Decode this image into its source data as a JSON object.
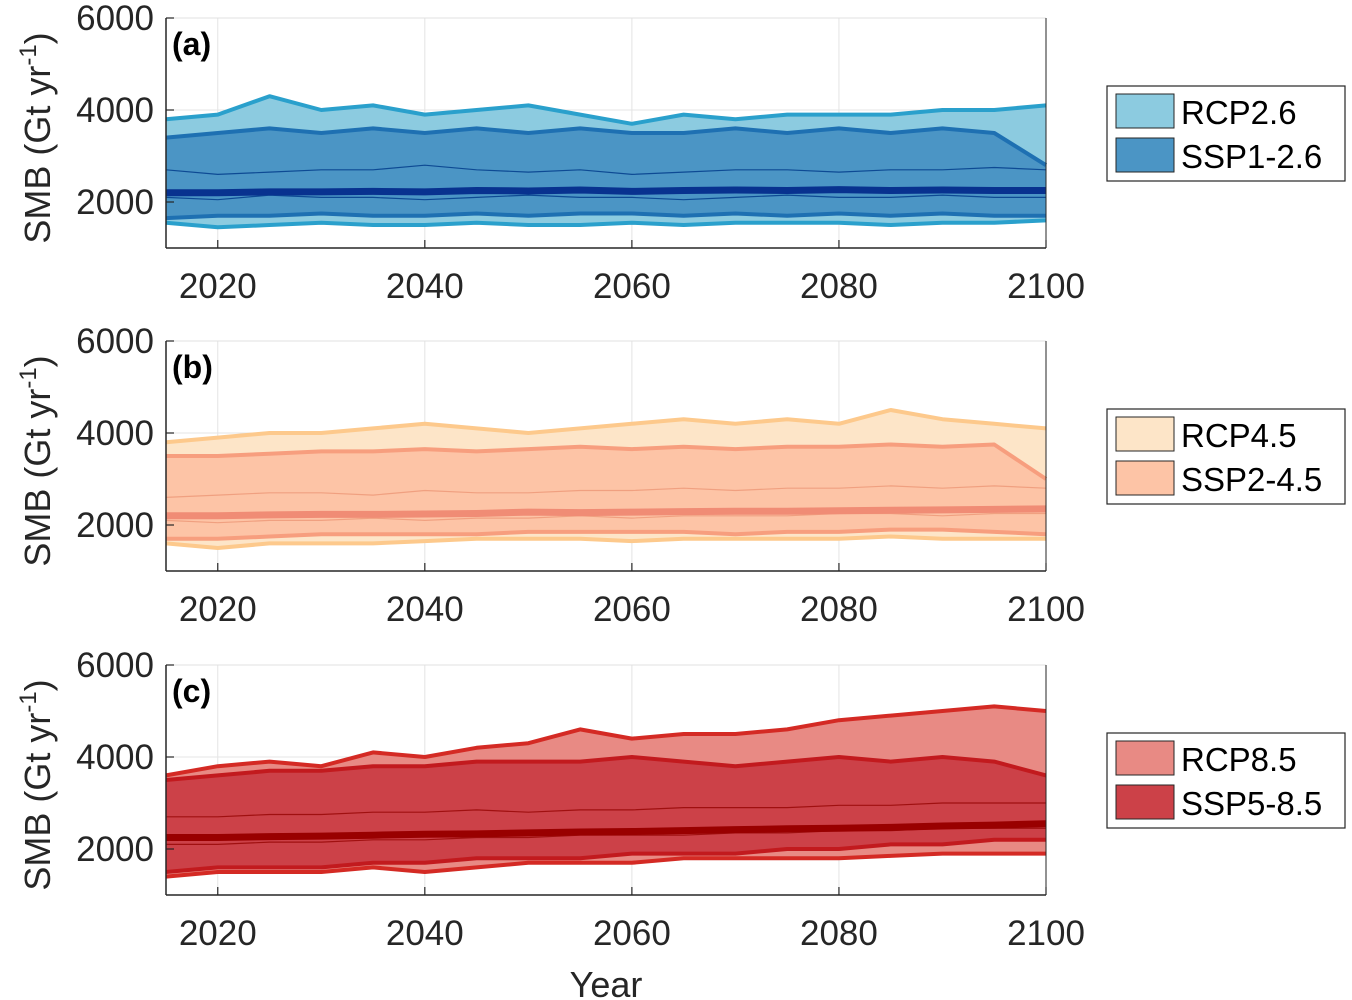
{
  "chart_data": [
    {
      "type": "area",
      "panel_label": "(a)",
      "ylabel": "SMB (Gt yr",
      "ylabel_sup": "-1",
      "xlabel": "",
      "xlim": [
        2015,
        2100
      ],
      "ylim": [
        1000,
        6000
      ],
      "xticks": [
        "2020",
        "2040",
        "2060",
        "2080",
        "2100"
      ],
      "yticks": [
        "2000",
        "4000",
        "6000"
      ],
      "grid": true,
      "legend_position": "right",
      "x": [
        2015,
        2020,
        2025,
        2030,
        2035,
        2040,
        2045,
        2050,
        2055,
        2060,
        2065,
        2070,
        2075,
        2080,
        2085,
        2090,
        2095,
        2100
      ],
      "series": [
        {
          "name": "RCP2.6",
          "fill": "#8ccbe0",
          "edge": "#2aa0cc",
          "upper": [
            3800,
            3900,
            4300,
            4000,
            4100,
            3900,
            4000,
            4100,
            3900,
            3700,
            3900,
            3800,
            3900,
            3900,
            3900,
            4000,
            4000,
            4100
          ],
          "lower": [
            1550,
            1450,
            1500,
            1550,
            1500,
            1500,
            1550,
            1500,
            1500,
            1550,
            1500,
            1550,
            1550,
            1550,
            1500,
            1550,
            1550,
            1600
          ]
        },
        {
          "name": "SSP1-2.6",
          "fill": "#4b95c5",
          "edge": "#1e70b2",
          "upper": [
            3400,
            3500,
            3600,
            3500,
            3600,
            3500,
            3600,
            3500,
            3600,
            3500,
            3500,
            3600,
            3500,
            3600,
            3500,
            3600,
            3500,
            2800
          ],
          "lower": [
            1650,
            1700,
            1700,
            1750,
            1700,
            1700,
            1750,
            1700,
            1750,
            1750,
            1700,
            1750,
            1700,
            1750,
            1700,
            1750,
            1700,
            1700
          ]
        }
      ],
      "median": {
        "color": "#08328f",
        "values": [
          2200,
          2200,
          2220,
          2220,
          2230,
          2220,
          2250,
          2240,
          2260,
          2230,
          2250,
          2260,
          2250,
          2270,
          2250,
          2260,
          2250,
          2250
        ]
      },
      "members": {
        "color": "#0d4a94",
        "values": [
          [
            2700,
            2600,
            2650,
            2700,
            2700,
            2800,
            2700,
            2650,
            2700,
            2600,
            2650,
            2700,
            2700,
            2650,
            2700,
            2700,
            2750,
            2700
          ],
          [
            2100,
            2050,
            2150,
            2100,
            2100,
            2050,
            2100,
            2150,
            2100,
            2100,
            2050,
            2100,
            2150,
            2100,
            2100,
            2150,
            2100,
            2100
          ]
        ]
      }
    },
    {
      "type": "area",
      "panel_label": "(b)",
      "ylabel": "SMB (Gt yr",
      "ylabel_sup": "-1",
      "xlabel": "",
      "xlim": [
        2015,
        2100
      ],
      "ylim": [
        1000,
        6000
      ],
      "xticks": [
        "2020",
        "2040",
        "2060",
        "2080",
        "2100"
      ],
      "yticks": [
        "2000",
        "4000",
        "6000"
      ],
      "grid": true,
      "legend_position": "right",
      "x": [
        2015,
        2020,
        2025,
        2030,
        2035,
        2040,
        2045,
        2050,
        2055,
        2060,
        2065,
        2070,
        2075,
        2080,
        2085,
        2090,
        2095,
        2100
      ],
      "series": [
        {
          "name": "RCP4.5",
          "fill": "#fde5c8",
          "edge": "#fdc98c",
          "upper": [
            3800,
            3900,
            4000,
            4000,
            4100,
            4200,
            4100,
            4000,
            4100,
            4200,
            4300,
            4200,
            4300,
            4200,
            4500,
            4300,
            4200,
            4100
          ],
          "lower": [
            1600,
            1500,
            1600,
            1600,
            1600,
            1650,
            1700,
            1700,
            1700,
            1650,
            1700,
            1700,
            1700,
            1700,
            1750,
            1700,
            1700,
            1700
          ]
        },
        {
          "name": "SSP2-4.5",
          "fill": "#fdc4a6",
          "edge": "#f79e7e",
          "upper": [
            3500,
            3500,
            3550,
            3600,
            3600,
            3650,
            3600,
            3650,
            3700,
            3650,
            3700,
            3650,
            3700,
            3700,
            3750,
            3700,
            3750,
            3000
          ],
          "lower": [
            1700,
            1700,
            1750,
            1800,
            1800,
            1800,
            1800,
            1850,
            1850,
            1850,
            1850,
            1800,
            1850,
            1850,
            1900,
            1900,
            1850,
            1800
          ]
        }
      ],
      "median": {
        "color": "#f08c75",
        "values": [
          2200,
          2200,
          2220,
          2230,
          2230,
          2240,
          2250,
          2280,
          2270,
          2280,
          2290,
          2300,
          2300,
          2310,
          2320,
          2330,
          2340,
          2350
        ]
      },
      "members": {
        "color": "#f0a080",
        "values": [
          [
            2600,
            2650,
            2700,
            2700,
            2650,
            2750,
            2700,
            2700,
            2750,
            2750,
            2800,
            2750,
            2800,
            2800,
            2850,
            2800,
            2850,
            2800
          ],
          [
            2100,
            2050,
            2100,
            2100,
            2150,
            2100,
            2150,
            2150,
            2200,
            2150,
            2200,
            2200,
            2200,
            2250,
            2250,
            2200,
            2250,
            2250
          ]
        ]
      }
    },
    {
      "type": "area",
      "panel_label": "(c)",
      "ylabel": "SMB (Gt yr",
      "ylabel_sup": "-1",
      "xlabel": "Year",
      "xlim": [
        2015,
        2100
      ],
      "ylim": [
        1000,
        6000
      ],
      "xticks": [
        "2020",
        "2040",
        "2060",
        "2080",
        "2100"
      ],
      "yticks": [
        "2000",
        "4000",
        "6000"
      ],
      "grid": true,
      "legend_position": "right",
      "x": [
        2015,
        2020,
        2025,
        2030,
        2035,
        2040,
        2045,
        2050,
        2055,
        2060,
        2065,
        2070,
        2075,
        2080,
        2085,
        2090,
        2095,
        2100
      ],
      "series": [
        {
          "name": "RCP8.5",
          "fill": "#e88a84",
          "edge": "#d42a24",
          "upper": [
            3600,
            3800,
            3900,
            3800,
            4100,
            4000,
            4200,
            4300,
            4600,
            4400,
            4500,
            4500,
            4600,
            4800,
            4900,
            5000,
            5100,
            5000
          ],
          "lower": [
            1400,
            1500,
            1500,
            1500,
            1600,
            1500,
            1600,
            1700,
            1700,
            1700,
            1800,
            1800,
            1800,
            1800,
            1850,
            1900,
            1900,
            1900
          ]
        },
        {
          "name": "SSP5-8.5",
          "fill": "#cc4148",
          "edge": "#c21a1e",
          "upper": [
            3500,
            3600,
            3700,
            3700,
            3800,
            3800,
            3900,
            3900,
            3900,
            4000,
            3900,
            3800,
            3900,
            4000,
            3900,
            4000,
            3900,
            3600
          ],
          "lower": [
            1500,
            1600,
            1600,
            1600,
            1700,
            1700,
            1800,
            1800,
            1800,
            1900,
            1900,
            1900,
            2000,
            2000,
            2100,
            2100,
            2200,
            2200
          ]
        }
      ],
      "median": {
        "color": "#990000",
        "values": [
          2250,
          2250,
          2270,
          2280,
          2300,
          2320,
          2330,
          2350,
          2370,
          2380,
          2400,
          2420,
          2440,
          2450,
          2470,
          2500,
          2520,
          2550
        ]
      },
      "members": {
        "color": "#a01010",
        "values": [
          [
            2700,
            2700,
            2750,
            2750,
            2800,
            2800,
            2850,
            2800,
            2850,
            2850,
            2900,
            2900,
            2900,
            2950,
            2950,
            3000,
            3000,
            3000
          ],
          [
            2100,
            2100,
            2150,
            2150,
            2200,
            2200,
            2250,
            2250,
            2300,
            2300,
            2300,
            2350,
            2350,
            2400,
            2400,
            2450,
            2450,
            2450
          ]
        ]
      }
    }
  ]
}
